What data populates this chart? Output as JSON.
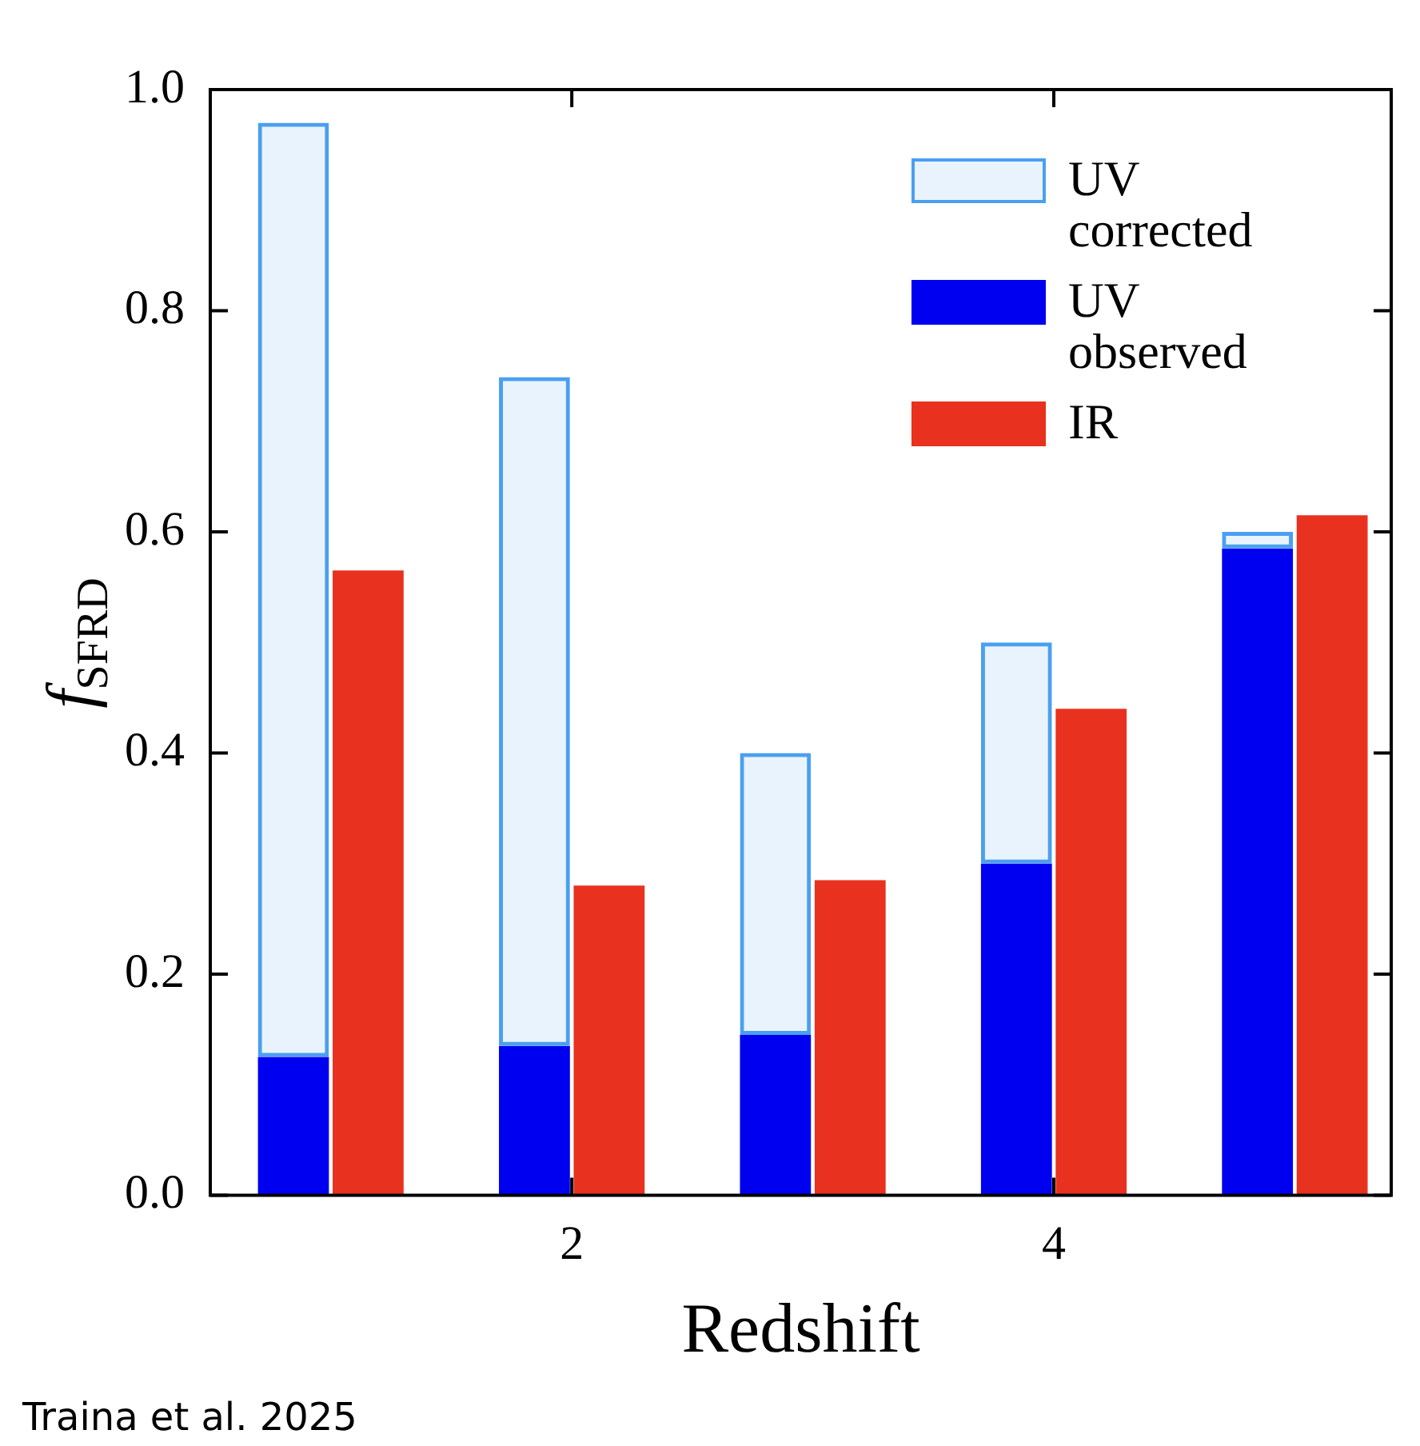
{
  "chart_data": {
    "type": "bar",
    "xlabel": "Redshift",
    "ylabel": "f$_{SFRD}$",
    "x": [
      1,
      2,
      3,
      4,
      5
    ],
    "series": [
      {
        "name": "UV corrected",
        "color": "#4b9ff0",
        "values": [
          0.845,
          0.605,
          0.255,
          0.2,
          0.015
        ],
        "base": [
          0.125,
          0.135,
          0.145,
          0.3,
          0.585
        ]
      },
      {
        "name": "UV observed",
        "color": "#0000f0",
        "values": [
          0.125,
          0.135,
          0.145,
          0.3,
          0.585
        ]
      },
      {
        "name": "IR",
        "color": "#e8321f",
        "values": [
          0.565,
          0.28,
          0.285,
          0.44,
          0.615
        ]
      }
    ],
    "xlim": [
      0.5,
      5.4
    ],
    "xticks": [
      2,
      4
    ],
    "ylim": [
      0,
      1
    ],
    "yticks": [
      {
        "value": 0,
        "label": "0.0"
      },
      0.2,
      0.4,
      0.6,
      0.8,
      {
        "value": 1,
        "label": "1.0"
      }
    ],
    "legend": "top right",
    "annotations": [
      "Traina et al. 2025"
    ]
  }
}
